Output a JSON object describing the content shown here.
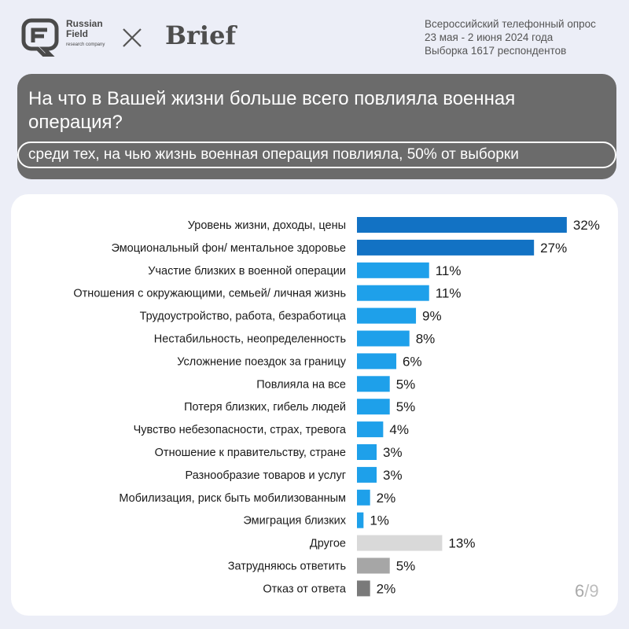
{
  "brand": {
    "logo_name": "Russian Field",
    "logo_sub": "research company",
    "partner": "Brief"
  },
  "survey": {
    "line1": "Всероссийский телефонный опрос",
    "line2": "23 мая - 2 июня 2024 года",
    "line3": "Выборка 1617 респондентов"
  },
  "question": {
    "title": "На что в Вашей жизни больше всего повлияла военная операция?",
    "subtitle": "среди тех, на чью жизнь военная операция повлияла, 50% от выборки"
  },
  "page": {
    "current": "6",
    "separator": "/",
    "total": "9"
  },
  "colors": {
    "top": "#1272c4",
    "main": "#1ea0ea",
    "other": "#d9d9d9",
    "hard": "#a6a6a6",
    "refuse": "#7a7a7a",
    "label": "#1a1a1a"
  },
  "chart_data": {
    "type": "bar",
    "orientation": "horizontal",
    "title": "",
    "xlabel": "",
    "ylabel": "",
    "value_suffix": "%",
    "categories": [
      "Уровень жизни, доходы, цены",
      "Эмоциональный фон/ ментальное здоровье",
      "Участие близких в военной операции",
      "Отношения с окружающими, семьей/ личная жизнь",
      "Трудоустройство, работа, безработица",
      "Нестабильность, неопределенность",
      "Усложнение поездок за границу",
      "Повлияла на все",
      "Потеря близких, гибель людей",
      "Чувство небезопасности, страх, тревога",
      "Отношение к правительству, стране",
      "Разнообразие товаров и услуг",
      "Мобилизация, риск быть мобилизованным",
      "Эмиграция близких",
      "Другое",
      "Затрудняюсь ответить",
      "Отказ от ответа"
    ],
    "values": [
      32,
      27,
      11,
      11,
      9,
      8,
      6,
      5,
      5,
      4,
      3,
      3,
      2,
      1,
      13,
      5,
      2
    ],
    "bar_colors": [
      "top",
      "top",
      "main",
      "main",
      "main",
      "main",
      "main",
      "main",
      "main",
      "main",
      "main",
      "main",
      "main",
      "main",
      "other",
      "hard",
      "refuse"
    ]
  }
}
